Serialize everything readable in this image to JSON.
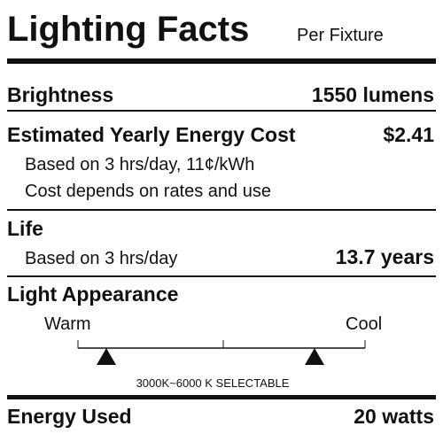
{
  "header": {
    "title": "Lighting Facts",
    "subtitle": "Per Fixture"
  },
  "brightness": {
    "label": "Brightness",
    "value": "1550 lumens"
  },
  "energy_cost": {
    "label": "Estimated Yearly Energy Cost",
    "value": "$2.41",
    "note_1": "Based on 3 hrs/day, 11¢/kWh",
    "note_2": "Cost depends on rates and use"
  },
  "life": {
    "label": "Life",
    "note": "Based on 3 hrs/day",
    "value": "13.7 years"
  },
  "light_appearance": {
    "label": "Light Appearance",
    "warm": "Warm",
    "cool": "Cool",
    "caption": "3000K~6000 K SELECTABLE"
  },
  "energy_used": {
    "label": "Energy Used",
    "value": "20 watts"
  }
}
